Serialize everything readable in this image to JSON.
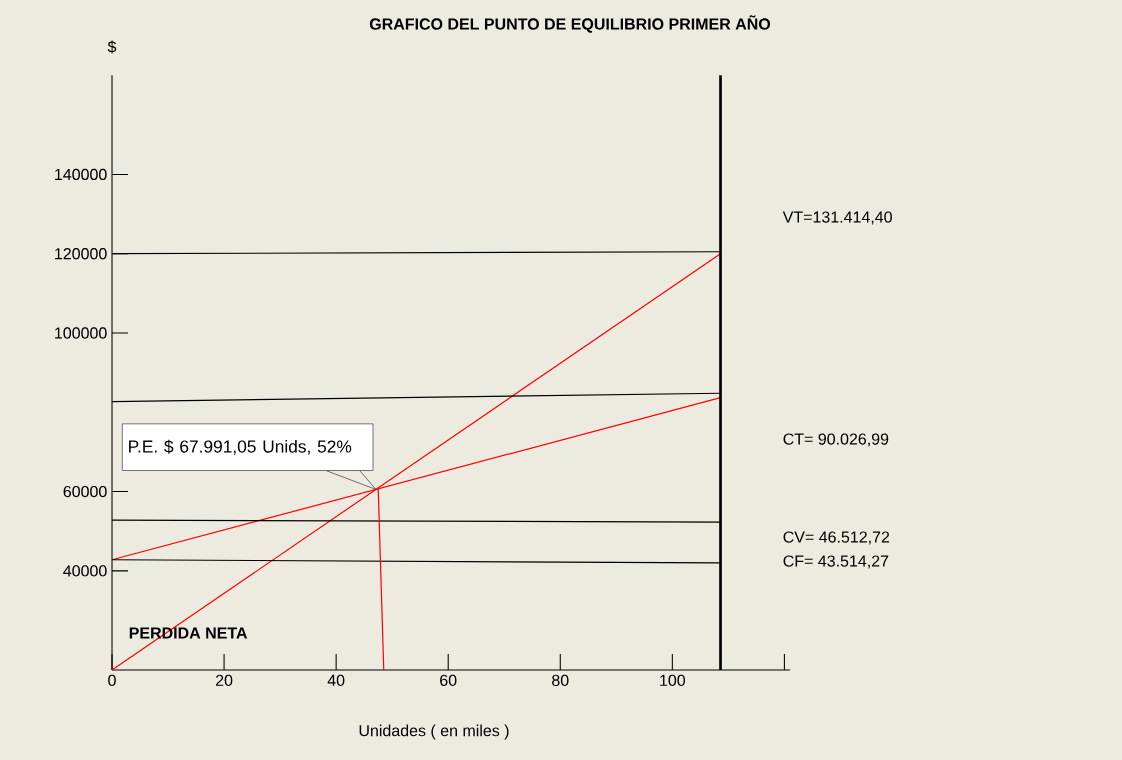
{
  "chart_data": {
    "type": "line",
    "title": "GRAFICO DEL PUNTO DE EQUILIBRIO PRIMER AÑO",
    "xlabel": "Unidades ( en miles )",
    "ylabel": "$",
    "xlim": [
      0,
      121
    ],
    "ylim": [
      15000,
      165000
    ],
    "xticks": [
      0,
      20,
      40,
      60,
      80,
      100,
      {
        "value": 120,
        "label": null
      }
    ],
    "yticks": [
      40000,
      60000,
      100000,
      120000,
      140000
    ],
    "grid": false,
    "series": [
      {
        "color": "#ff0000",
        "x": [
          0,
          108.6
        ],
        "values": [
          15000,
          120000
        ]
      },
      {
        "color": "#ff0000",
        "x": [
          0,
          108.6
        ],
        "values": [
          42800,
          83700
        ]
      },
      {
        "color": "#000000",
        "x": [
          0,
          108.6
        ],
        "values": [
          120000,
          120500
        ]
      },
      {
        "color": "#000000",
        "x": [
          0,
          108.6
        ],
        "values": [
          82700,
          84800
        ]
      },
      {
        "color": "#000000",
        "x": [
          0,
          108.6
        ],
        "values": [
          52800,
          52300
        ]
      },
      {
        "color": "#000000",
        "x": [
          0,
          108.6
        ],
        "values": [
          42800,
          42000
        ]
      },
      {
        "color": "#ff0000",
        "x": [
          48.5,
          47.5
        ],
        "values": [
          15000,
          61000
        ]
      }
    ],
    "ref_lines": [
      {
        "axis": "x",
        "value": 108.6,
        "color": "#000000"
      }
    ],
    "annotations": [
      "P.E. $ 67.991,05 Unids,  52%",
      "PERDIDA NETA",
      "VT=131.414,40",
      "CT= 90.026,99",
      "CV= 46.512,72",
      "CF= 43.514,27"
    ]
  }
}
